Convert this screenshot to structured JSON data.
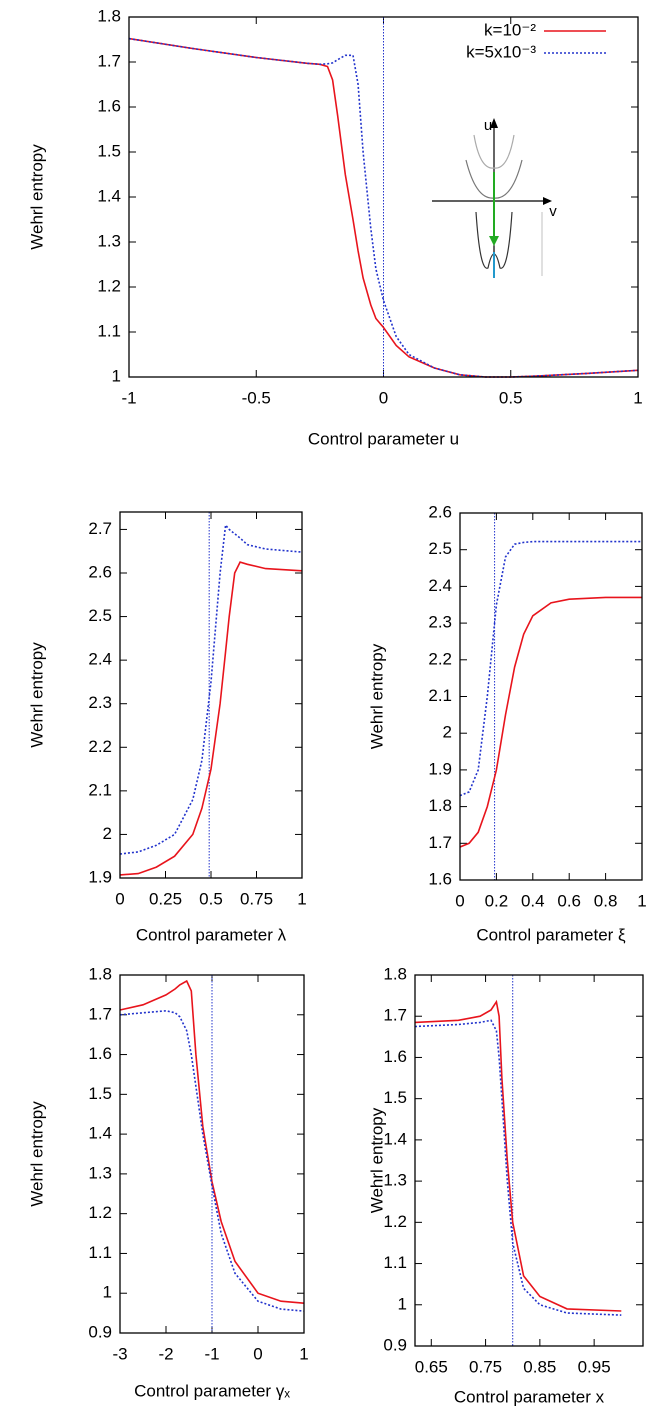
{
  "chart_data": [
    {
      "type": "line",
      "ylabel": "Wehrl entropy",
      "xlabel": "Control parameter u",
      "x": [
        -1,
        -0.75,
        -0.5,
        -0.3,
        -0.25,
        -0.22,
        -0.2,
        -0.18,
        -0.15,
        -0.12,
        -0.1,
        -0.08,
        -0.05,
        -0.03,
        0,
        0.05,
        0.1,
        0.2,
        0.3,
        0.4,
        0.5,
        0.6,
        0.8,
        1
      ],
      "series": [
        {
          "name": "k=10⁻²",
          "color": "#e8141c",
          "dash": "solid",
          "values": [
            1.752,
            1.73,
            1.71,
            1.697,
            1.695,
            1.69,
            1.66,
            1.58,
            1.45,
            1.35,
            1.28,
            1.22,
            1.16,
            1.13,
            1.11,
            1.07,
            1.045,
            1.02,
            1.005,
            1.0,
            1.0,
            1.002,
            1.008,
            1.015
          ]
        },
        {
          "name": "k=5x10⁻³",
          "color": "#2233cc",
          "dash": "dotted",
          "values": [
            1.752,
            1.73,
            1.71,
            1.697,
            1.695,
            1.696,
            1.698,
            1.705,
            1.715,
            1.715,
            1.65,
            1.5,
            1.33,
            1.24,
            1.17,
            1.09,
            1.05,
            1.02,
            1.005,
            1.0,
            1.0,
            1.002,
            1.008,
            1.015
          ]
        }
      ],
      "xlim": [
        -1,
        1
      ],
      "xticks": [
        -1,
        -0.5,
        0,
        0.5,
        1
      ],
      "ylim": [
        1,
        1.8
      ],
      "yticks": [
        1,
        1.1,
        1.2,
        1.3,
        1.4,
        1.5,
        1.6,
        1.7,
        1.8
      ],
      "vline": 0,
      "legend": "upper right",
      "inset_labels": [
        "u",
        "v"
      ]
    },
    {
      "type": "line",
      "ylabel": "Wehrl entropy",
      "xlabel": "Control parameter λ",
      "x": [
        0,
        0.1,
        0.2,
        0.3,
        0.4,
        0.45,
        0.5,
        0.55,
        0.58,
        0.6,
        0.63,
        0.66,
        0.7,
        0.8,
        1
      ],
      "series": [
        {
          "color": "#e8141c",
          "dash": "solid",
          "values": [
            1.907,
            1.91,
            1.925,
            1.95,
            2.0,
            2.06,
            2.15,
            2.3,
            2.42,
            2.5,
            2.6,
            2.625,
            2.62,
            2.61,
            2.605
          ]
        },
        {
          "color": "#2233cc",
          "dash": "dotted",
          "values": [
            1.955,
            1.96,
            1.975,
            2.0,
            2.08,
            2.17,
            2.35,
            2.6,
            2.71,
            2.7,
            2.69,
            2.68,
            2.665,
            2.655,
            2.648
          ]
        }
      ],
      "xlim": [
        0,
        1
      ],
      "xticks": [
        0,
        0.25,
        0.5,
        0.75,
        1
      ],
      "ylim": [
        1.9,
        2.74
      ],
      "yticks": [
        1.9,
        2,
        2.1,
        2.2,
        2.3,
        2.4,
        2.5,
        2.6,
        2.7
      ],
      "vline": 0.49
    },
    {
      "type": "line",
      "ylabel": "Wehrl entropy",
      "xlabel": "Control parameter ξ",
      "x": [
        0,
        0.05,
        0.1,
        0.15,
        0.2,
        0.25,
        0.3,
        0.35,
        0.4,
        0.5,
        0.6,
        0.8,
        1
      ],
      "series": [
        {
          "color": "#e8141c",
          "dash": "solid",
          "values": [
            1.69,
            1.7,
            1.73,
            1.8,
            1.9,
            2.05,
            2.18,
            2.27,
            2.32,
            2.355,
            2.365,
            2.37,
            2.37
          ]
        },
        {
          "color": "#2233cc",
          "dash": "dotted",
          "values": [
            1.83,
            1.84,
            1.9,
            2.1,
            2.35,
            2.48,
            2.515,
            2.52,
            2.522,
            2.522,
            2.522,
            2.522,
            2.522
          ]
        }
      ],
      "xlim": [
        0,
        1
      ],
      "xticks": [
        0,
        0.2,
        0.4,
        0.6,
        0.8,
        1
      ],
      "ylim": [
        1.6,
        2.6
      ],
      "yticks": [
        1.6,
        1.7,
        1.8,
        1.9,
        2,
        2.1,
        2.2,
        2.3,
        2.4,
        2.5,
        2.6
      ],
      "vline": 0.19
    },
    {
      "type": "line",
      "ylabel": "Wehrl entropy",
      "xlabel": "Control parameter γₓ",
      "x": [
        -3,
        -2.5,
        -2,
        -1.8,
        -1.7,
        -1.55,
        -1.45,
        -1.35,
        -1.2,
        -1,
        -0.8,
        -0.5,
        0,
        0.5,
        1
      ],
      "series": [
        {
          "color": "#e8141c",
          "dash": "solid",
          "values": [
            1.712,
            1.725,
            1.75,
            1.765,
            1.775,
            1.785,
            1.76,
            1.6,
            1.42,
            1.28,
            1.18,
            1.08,
            1.0,
            0.98,
            0.975
          ]
        },
        {
          "color": "#2233cc",
          "dash": "dotted",
          "values": [
            1.7,
            1.705,
            1.71,
            1.705,
            1.695,
            1.66,
            1.6,
            1.52,
            1.4,
            1.27,
            1.15,
            1.05,
            0.98,
            0.96,
            0.955
          ]
        }
      ],
      "xlim": [
        -3,
        1
      ],
      "xticks": [
        -3,
        -2,
        -1,
        0,
        1
      ],
      "ylim": [
        0.9,
        1.8
      ],
      "yticks": [
        0.9,
        1,
        1.1,
        1.2,
        1.3,
        1.4,
        1.5,
        1.6,
        1.7,
        1.8
      ],
      "vline": -1
    },
    {
      "type": "line",
      "ylabel": "Wehrl entropy",
      "xlabel": "Control parameter x",
      "x": [
        0.62,
        0.7,
        0.74,
        0.76,
        0.77,
        0.775,
        0.78,
        0.79,
        0.8,
        0.82,
        0.85,
        0.9,
        1
      ],
      "series": [
        {
          "color": "#e8141c",
          "dash": "solid",
          "values": [
            1.685,
            1.69,
            1.7,
            1.715,
            1.735,
            1.7,
            1.55,
            1.35,
            1.2,
            1.07,
            1.02,
            0.99,
            0.985
          ]
        },
        {
          "color": "#2233cc",
          "dash": "dotted",
          "values": [
            1.675,
            1.68,
            1.685,
            1.69,
            1.665,
            1.6,
            1.5,
            1.3,
            1.15,
            1.04,
            1.0,
            0.98,
            0.975
          ]
        }
      ],
      "xlim": [
        0.62,
        1.04
      ],
      "xticks": [
        0.65,
        0.75,
        0.85,
        0.95
      ],
      "ylim": [
        0.9,
        1.8
      ],
      "yticks": [
        0.9,
        1,
        1.1,
        1.2,
        1.3,
        1.4,
        1.5,
        1.6,
        1.7,
        1.8
      ],
      "vline": 0.8
    }
  ]
}
